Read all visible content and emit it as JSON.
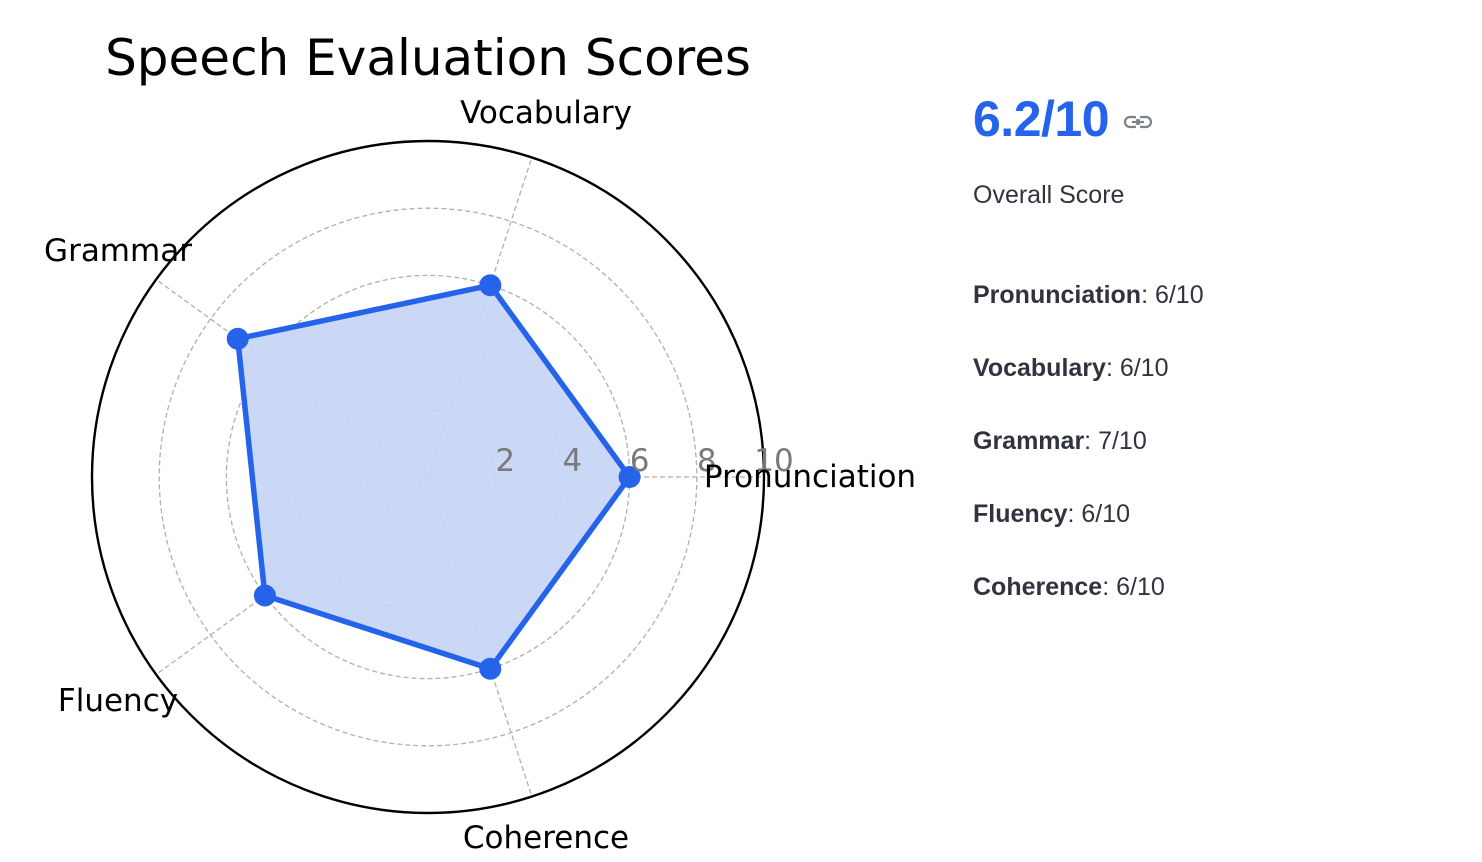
{
  "chart_data": {
    "type": "radar",
    "title": "Speech Evaluation Scores",
    "categories": [
      "Pronunciation",
      "Vocabulary",
      "Grammar",
      "Fluency",
      "Coherence"
    ],
    "series": [
      {
        "values": [
          6,
          6,
          7,
          6,
          6
        ]
      }
    ],
    "rlim": [
      0,
      10
    ],
    "rticks": [
      "2",
      "4",
      "6",
      "8",
      "10"
    ],
    "grid": true,
    "colors": {
      "line": "#2563eb",
      "fill": "#c7d6f5",
      "grid": "#b0b0b0"
    }
  },
  "summary": {
    "overall_value": "6.2/10",
    "link_icon": "link-icon",
    "overall_label": "Overall Score",
    "metrics": [
      {
        "name": "Pronunciation",
        "value": ": 6/10"
      },
      {
        "name": "Vocabulary",
        "value": ": 6/10"
      },
      {
        "name": "Grammar",
        "value": ": 7/10"
      },
      {
        "name": "Fluency",
        "value": ": 6/10"
      },
      {
        "name": "Coherence",
        "value": ": 6/10"
      }
    ]
  }
}
